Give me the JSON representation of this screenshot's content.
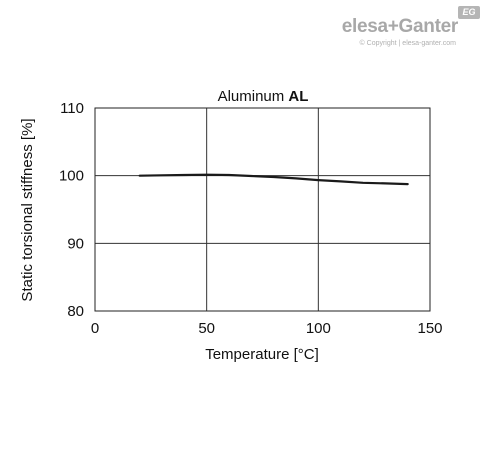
{
  "brand": {
    "name": "elesa+Ganter",
    "badge": "EG",
    "copyright": "© Copyright | elesa-ganter.com"
  },
  "chart_data": {
    "type": "line",
    "title_regular": "Aluminum ",
    "title_bold": "AL",
    "xlabel": "Temperature [°C]",
    "ylabel": "Static torsional stiffness [%]",
    "xlim": [
      0,
      150
    ],
    "ylim": [
      80,
      110
    ],
    "xticks": [
      0,
      50,
      100,
      150
    ],
    "yticks": [
      80,
      90,
      100,
      110
    ],
    "grid": true,
    "series": [
      {
        "color": "#1a1a1a",
        "x": [
          20,
          30,
          40,
          50,
          60,
          70,
          80,
          90,
          100,
          110,
          120,
          130,
          140
        ],
        "y": [
          100.0,
          100.05,
          100.1,
          100.15,
          100.1,
          99.95,
          99.8,
          99.6,
          99.35,
          99.15,
          98.95,
          98.85,
          98.75
        ]
      }
    ]
  }
}
